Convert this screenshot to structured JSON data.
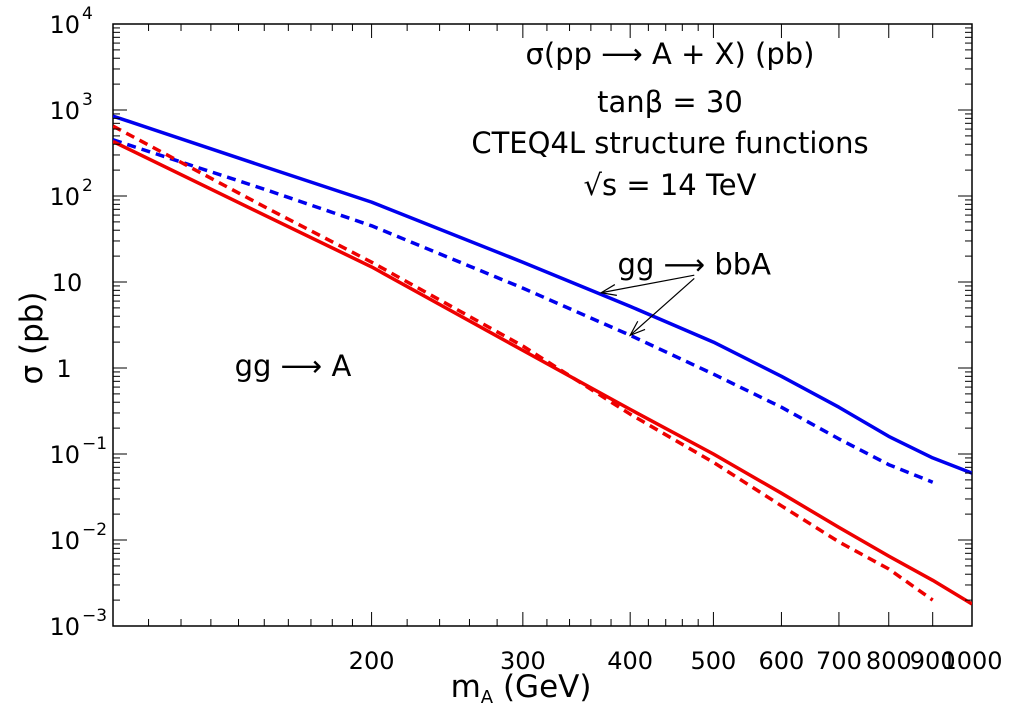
{
  "chart_data": {
    "type": "line",
    "title_lines": [
      "σ(pp ⟶ A + X) (pb)",
      "tanβ = 30",
      "CTEQ4L structure functions",
      "√s = 14 TeV"
    ],
    "xlabel": "m",
    "xlabel_sub": "A",
    "xlabel_unit": " (GeV)",
    "ylabel": "σ (pb)",
    "x_scale": "log",
    "y_scale": "log",
    "xlim": [
      100,
      1000
    ],
    "ylim": [
      0.001,
      10000
    ],
    "x_ticks": [
      {
        "v": 200,
        "label": "200"
      },
      {
        "v": 300,
        "label": "300"
      },
      {
        "v": 400,
        "label": "400"
      },
      {
        "v": 500,
        "label": "500"
      },
      {
        "v": 600,
        "label": "600"
      },
      {
        "v": 700,
        "label": "700"
      },
      {
        "v": 800,
        "label": "800"
      },
      {
        "v": 900,
        "label": "900"
      },
      {
        "v": 1000,
        "label": "1000"
      }
    ],
    "y_ticks": [
      {
        "v": 0.001,
        "base": "10",
        "exp": "−3"
      },
      {
        "v": 0.01,
        "base": "10",
        "exp": "−2"
      },
      {
        "v": 0.1,
        "base": "10",
        "exp": "−1"
      },
      {
        "v": 1,
        "base": "1",
        "exp": ""
      },
      {
        "v": 10,
        "base": "10",
        "exp": ""
      },
      {
        "v": 100,
        "base": "10",
        "exp": "2"
      },
      {
        "v": 1000,
        "base": "10",
        "exp": "3"
      },
      {
        "v": 10000,
        "base": "10",
        "exp": "4"
      }
    ],
    "series": [
      {
        "color": "#0000ee",
        "dash": false,
        "points": [
          [
            100,
            850
          ],
          [
            150,
            220
          ],
          [
            200,
            85
          ],
          [
            300,
            17
          ],
          [
            400,
            5.2
          ],
          [
            500,
            2.0
          ],
          [
            600,
            0.8
          ],
          [
            700,
            0.35
          ],
          [
            800,
            0.16
          ],
          [
            900,
            0.09
          ],
          [
            1000,
            0.06
          ]
        ]
      },
      {
        "color": "#0000ee",
        "dash": true,
        "points": [
          [
            100,
            450
          ],
          [
            150,
            120
          ],
          [
            200,
            45
          ],
          [
            300,
            8.5
          ],
          [
            400,
            2.4
          ],
          [
            500,
            0.85
          ],
          [
            600,
            0.35
          ],
          [
            700,
            0.15
          ],
          [
            800,
            0.075
          ],
          [
            900,
            0.047
          ]
        ]
      },
      {
        "color": "#ee0000",
        "dash": false,
        "points": [
          [
            100,
            430
          ],
          [
            150,
            60
          ],
          [
            200,
            15
          ],
          [
            300,
            1.6
          ],
          [
            400,
            0.33
          ],
          [
            500,
            0.1
          ],
          [
            600,
            0.035
          ],
          [
            700,
            0.014
          ],
          [
            800,
            0.0065
          ],
          [
            900,
            0.0034
          ],
          [
            1000,
            0.0018
          ]
        ]
      },
      {
        "color": "#ee0000",
        "dash": true,
        "points": [
          [
            100,
            650
          ],
          [
            150,
            75
          ],
          [
            200,
            17
          ],
          [
            300,
            1.8
          ],
          [
            400,
            0.29
          ],
          [
            500,
            0.08
          ],
          [
            600,
            0.025
          ],
          [
            700,
            0.0095
          ],
          [
            800,
            0.0046
          ],
          [
            900,
            0.002
          ]
        ]
      }
    ],
    "annotations": [
      {
        "text": "gg ⟶ bbA",
        "x": 475,
        "y": 16
      },
      {
        "text": "gg ⟶ A",
        "x": 162,
        "y": 1.05
      }
    ],
    "arrows": [
      {
        "from": [
          475,
          12
        ],
        "to": [
          370,
          7.5
        ]
      },
      {
        "from": [
          475,
          11
        ],
        "to": [
          400,
          2.4
        ]
      }
    ],
    "grid": false,
    "legend": "none"
  }
}
